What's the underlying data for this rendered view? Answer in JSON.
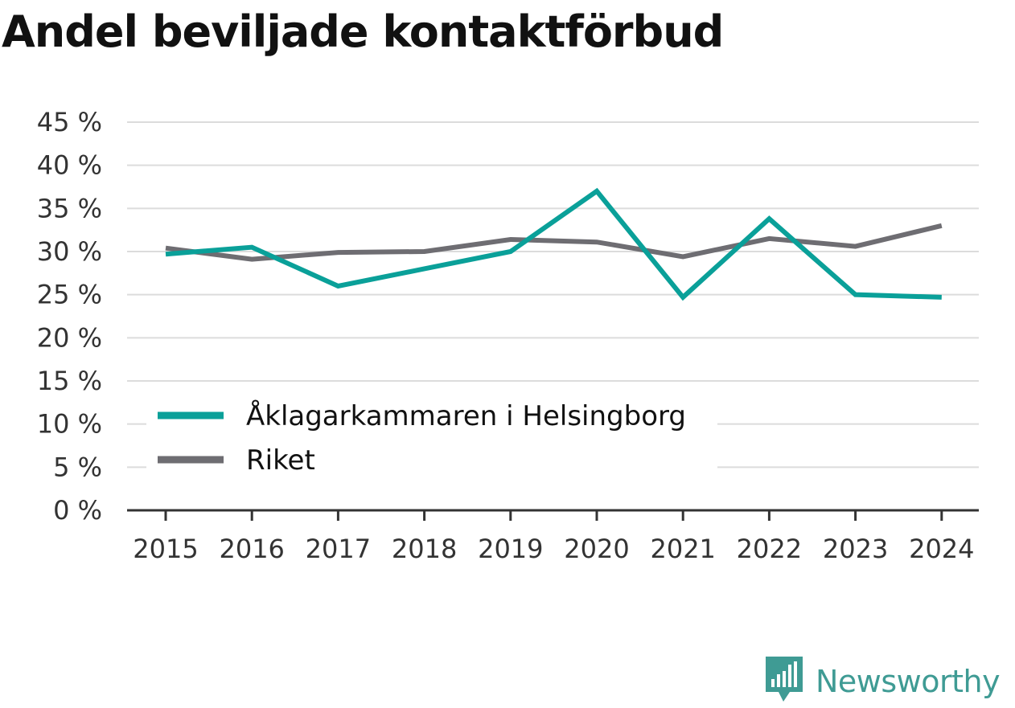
{
  "title": "Andel beviljade kontaktförbud",
  "brand": {
    "name": "Newsworthy",
    "icon": "newsworthy-logo-icon",
    "color": "#3f9b94"
  },
  "chart_data": {
    "type": "line",
    "title": "Andel beviljade kontaktförbud",
    "xlabel": "",
    "ylabel": "",
    "x": [
      "2015",
      "2016",
      "2017",
      "2018",
      "2019",
      "2020",
      "2021",
      "2022",
      "2023",
      "2024"
    ],
    "yticks": [
      "0 %",
      "5 %",
      "10 %",
      "15 %",
      "20 %",
      "25 %",
      "30 %",
      "35 %",
      "40 %",
      "45 %"
    ],
    "ylim": [
      0,
      45
    ],
    "grid": true,
    "legend_placement": "bottom-left",
    "series": [
      {
        "name": "Åklagarkammaren i Helsingborg",
        "color": "#0aa099",
        "values": [
          29.7,
          30.5,
          26.0,
          28.0,
          30.0,
          37.0,
          24.7,
          33.8,
          25.0,
          24.7
        ]
      },
      {
        "name": "Riket",
        "color": "#6e6d72",
        "values": [
          30.4,
          29.1,
          29.9,
          30.0,
          31.4,
          31.1,
          29.4,
          31.5,
          30.6,
          33.0
        ]
      }
    ]
  }
}
